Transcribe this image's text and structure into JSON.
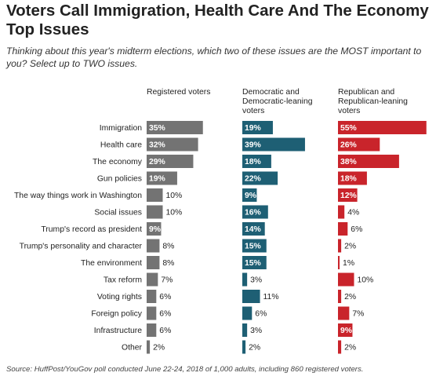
{
  "title": "Voters Call Immigration, Health Care And The Economy Top Issues",
  "subtitle": "Thinking about this year's midterm elections, which two of these issues are the MOST important to you? Select up to TWO issues.",
  "source": "Source: HuffPost/YouGov poll conducted June 22-24, 2018 of 1,000 adults, including 860 registered voters.",
  "chart_data": {
    "type": "bar",
    "orientation": "horizontal",
    "unit": "%",
    "categories": [
      "Immigration",
      "Health care",
      "The economy",
      "Gun policies",
      "The way things work in Washington",
      "Social issues",
      "Trump's record as president",
      "Trump's personality and character",
      "The environment",
      "Tax reform",
      "Voting rights",
      "Foreign policy",
      "Infrastructure",
      "Other"
    ],
    "series": [
      {
        "name": "Registered voters",
        "color": "#737373",
        "values": [
          35,
          32,
          29,
          19,
          10,
          10,
          9,
          8,
          8,
          7,
          6,
          6,
          6,
          2
        ]
      },
      {
        "name": "Democratic and Democratic-leaning voters",
        "color": "#1e5f74",
        "values": [
          19,
          39,
          18,
          22,
          9,
          16,
          14,
          15,
          15,
          3,
          11,
          6,
          3,
          2
        ]
      },
      {
        "name": "Republican and Republican-leaning voters",
        "color": "#c9242b",
        "values": [
          55,
          26,
          38,
          18,
          12,
          4,
          6,
          2,
          1,
          10,
          2,
          7,
          9,
          2
        ]
      }
    ],
    "value_label_suffix": "%"
  },
  "columns": {
    "registered": [
      "Registered voters"
    ],
    "democratic": [
      "Democratic and",
      "Democratic-leaning",
      "voters"
    ],
    "republican": [
      "Republican and",
      "Republican-leaning",
      "voters"
    ]
  }
}
